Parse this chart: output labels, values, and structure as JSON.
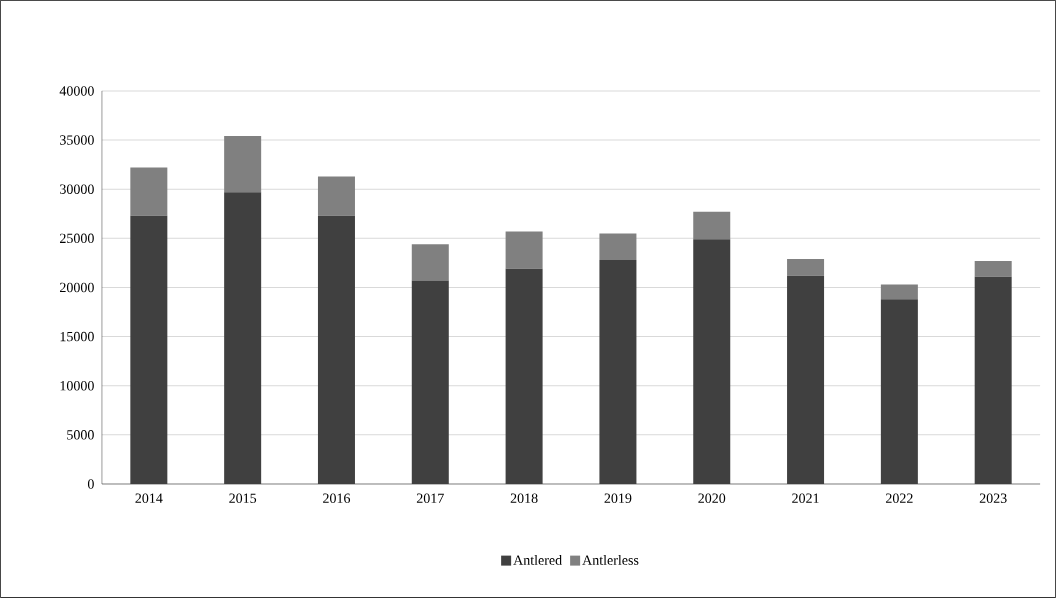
{
  "chart_data": {
    "type": "bar",
    "stacked": true,
    "categories": [
      "2014",
      "2015",
      "2016",
      "2017",
      "2018",
      "2019",
      "2020",
      "2021",
      "2022",
      "2023"
    ],
    "series": [
      {
        "name": "Antlered",
        "color": "#404040",
        "values": [
          27300,
          29700,
          27300,
          20700,
          21900,
          22800,
          24900,
          21200,
          18800,
          21100
        ]
      },
      {
        "name": "Antlerless",
        "color": "#808080",
        "values": [
          4900,
          5700,
          4000,
          3700,
          3800,
          2700,
          2800,
          1700,
          1500,
          1600
        ]
      }
    ],
    "ylim": [
      0,
      40000
    ],
    "yticks": [
      0,
      5000,
      10000,
      15000,
      20000,
      25000,
      30000,
      35000,
      40000
    ],
    "grid": "y",
    "legend": "bottom"
  }
}
